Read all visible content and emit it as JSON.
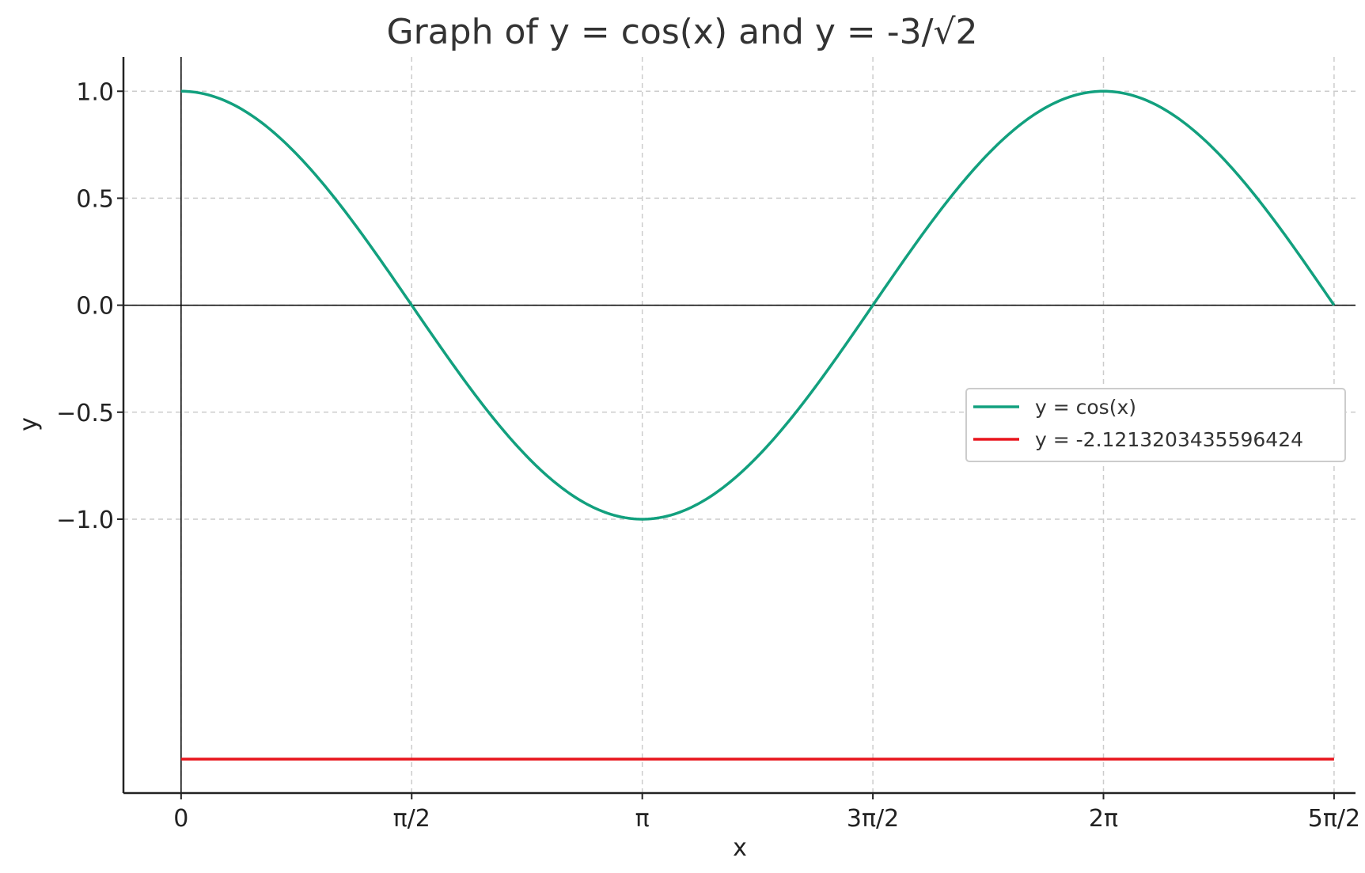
{
  "chart_data": {
    "type": "line",
    "title": "Graph of y = cos(x) and y = -3/√2",
    "xlabel": "x",
    "ylabel": "y",
    "xlim": [
      -0.3927,
      8.0
    ],
    "ylim": [
      -2.28,
      1.16
    ],
    "x_ticks": [
      {
        "value": 0,
        "label": "0"
      },
      {
        "value": 1.5708,
        "label": "π/2"
      },
      {
        "value": 3.1416,
        "label": "π"
      },
      {
        "value": 4.7124,
        "label": "3π/2"
      },
      {
        "value": 6.2832,
        "label": "2π"
      },
      {
        "value": 7.854,
        "label": "5π/2"
      }
    ],
    "y_ticks": [
      {
        "value": 1.0,
        "label": "1.0"
      },
      {
        "value": 0.5,
        "label": "0.5"
      },
      {
        "value": 0.0,
        "label": "0.0"
      },
      {
        "value": -0.5,
        "label": "−0.5"
      },
      {
        "value": -1.0,
        "label": "−1.0"
      }
    ],
    "grid": true,
    "legend_position": "right",
    "series": [
      {
        "name": "y = cos(x)",
        "color": "#12a07e",
        "x": [
          0,
          0.3927,
          0.7854,
          1.1781,
          1.5708,
          1.9635,
          2.3562,
          2.7489,
          3.1416,
          3.5343,
          3.927,
          4.3197,
          4.7124,
          5.1051,
          5.4978,
          5.8905,
          6.2832,
          6.6759,
          7.0686,
          7.4613,
          7.854
        ],
        "y": [
          1.0,
          0.9239,
          0.7071,
          0.3827,
          0.0,
          -0.3827,
          -0.7071,
          -0.9239,
          -1.0,
          -0.9239,
          -0.7071,
          -0.3827,
          0.0,
          0.3827,
          0.7071,
          0.9239,
          1.0,
          0.9239,
          0.7071,
          0.3827,
          0.0
        ]
      },
      {
        "name": "y = -2.1213203435596424",
        "color": "#e8141c",
        "x": [
          0,
          7.854
        ],
        "y": [
          -2.1213203435596424,
          -2.1213203435596424
        ]
      }
    ]
  }
}
